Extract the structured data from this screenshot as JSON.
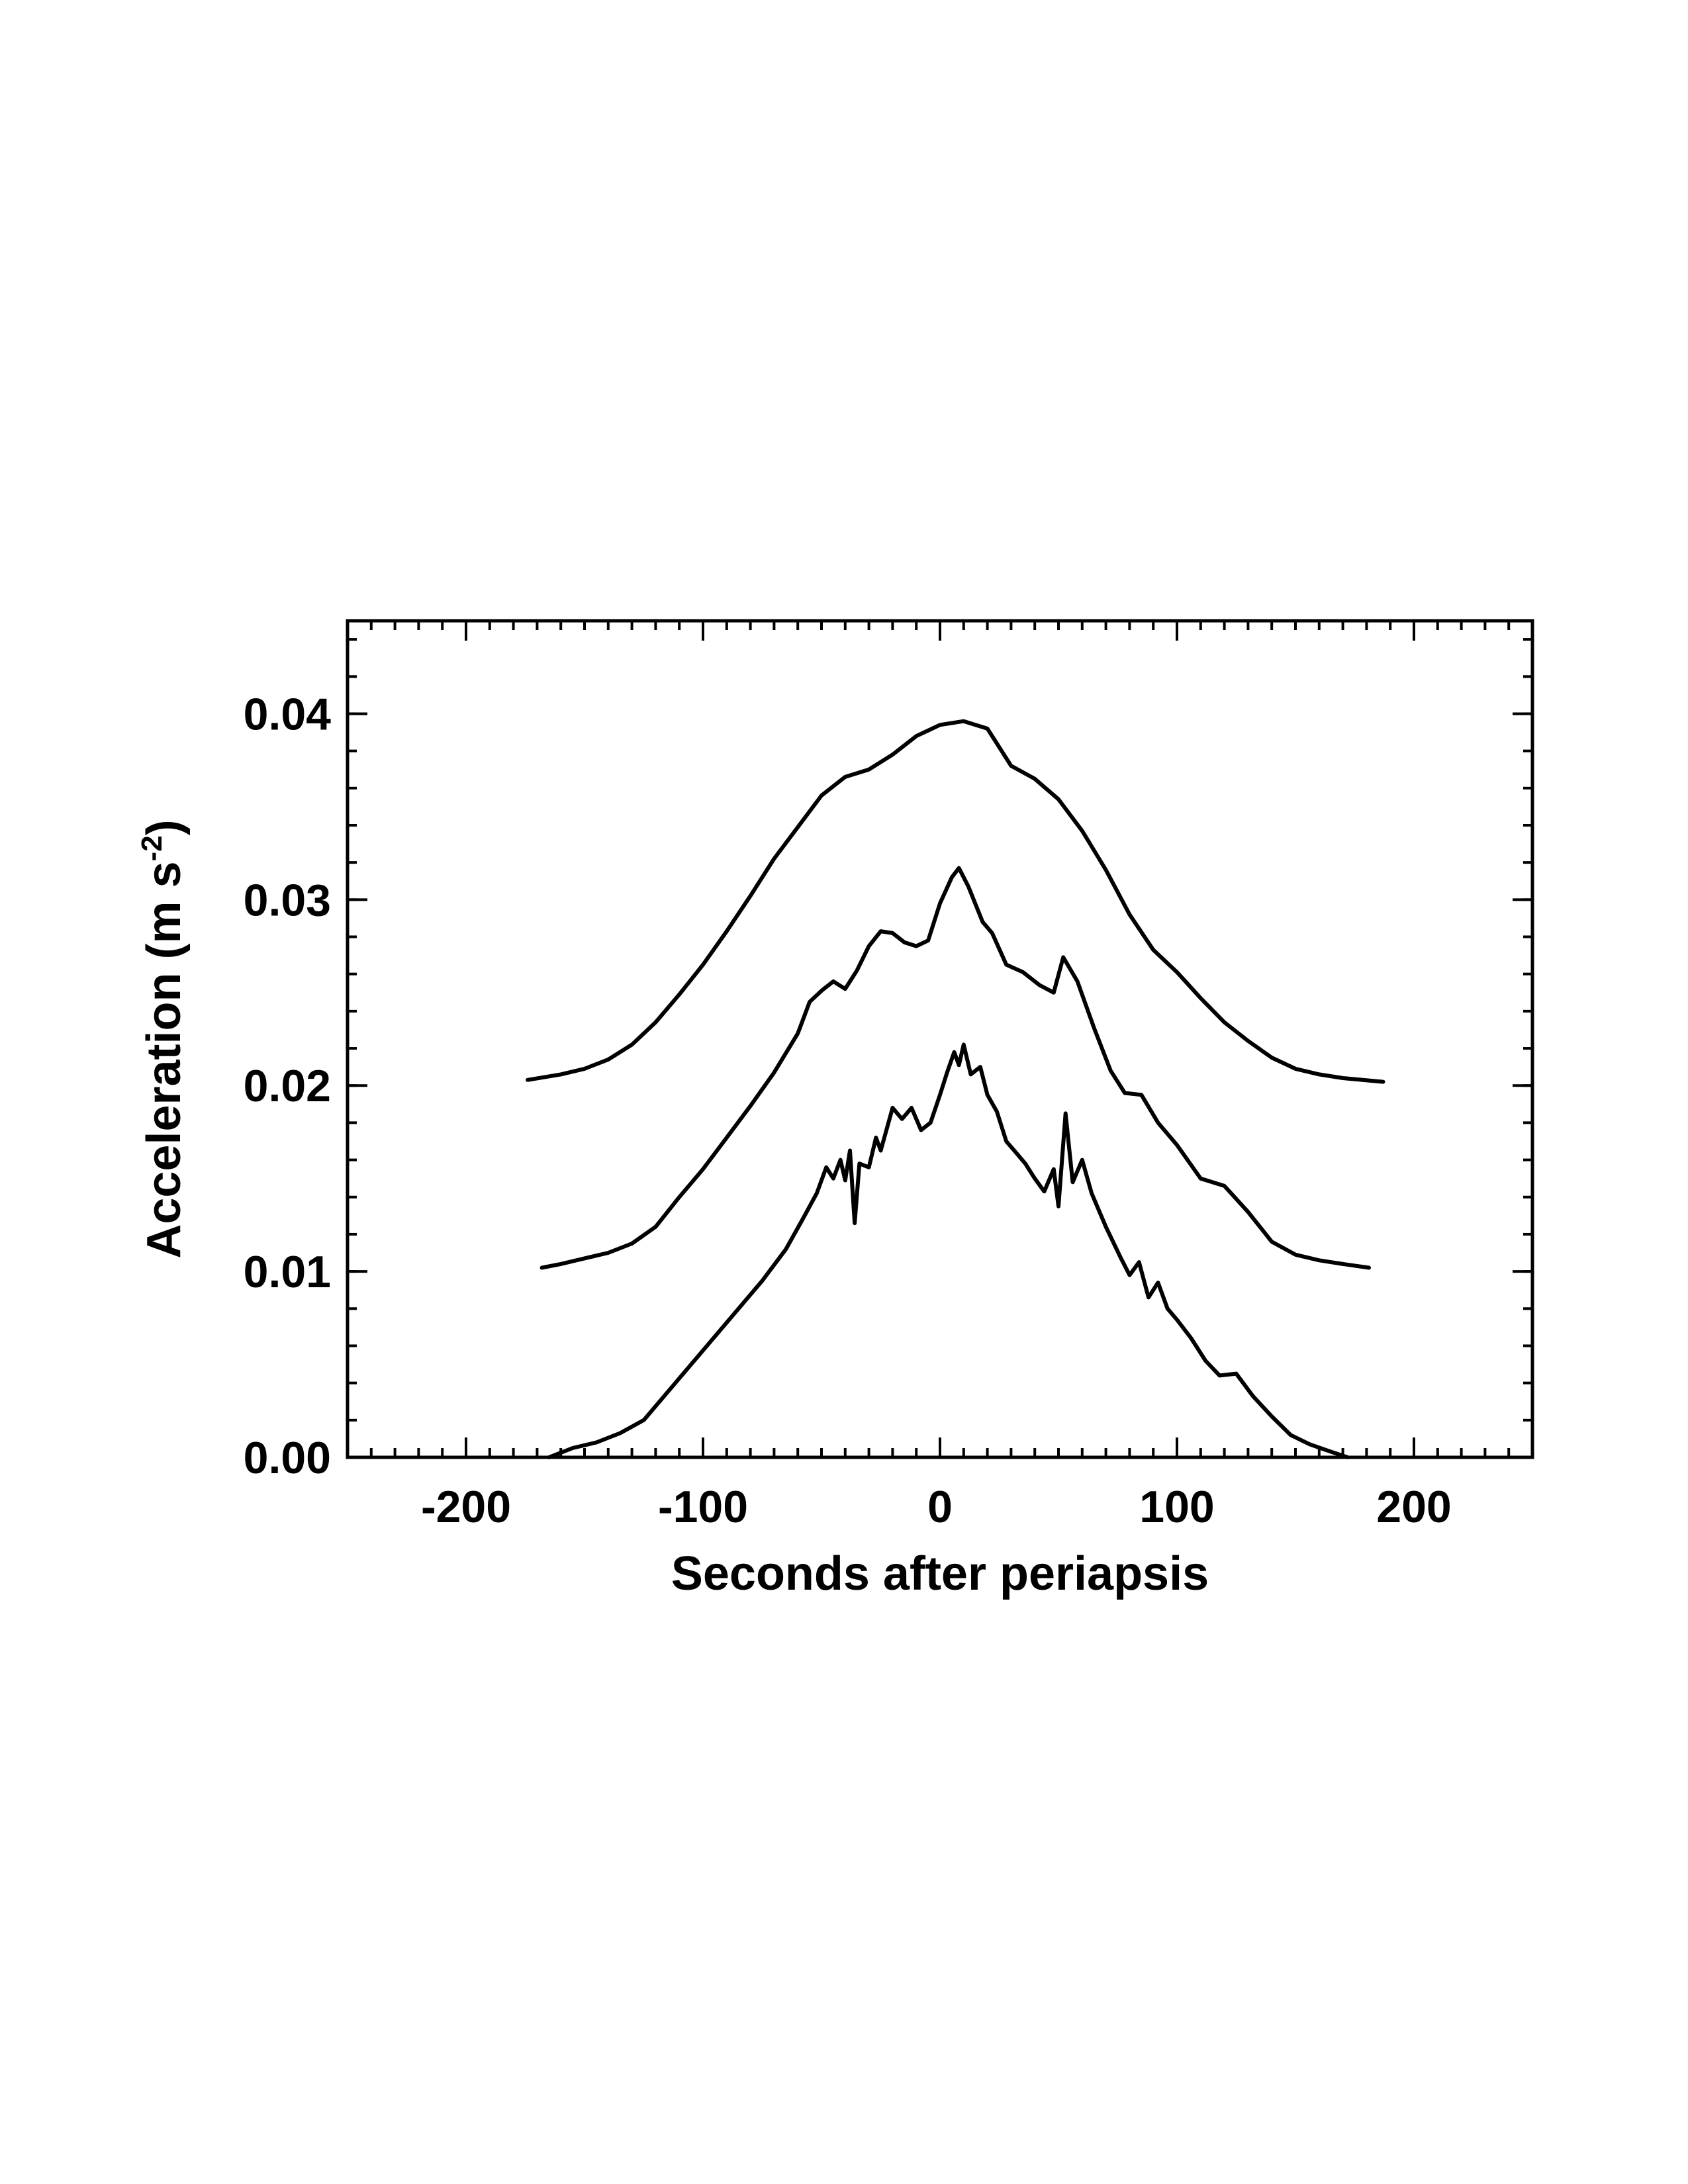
{
  "chart_data": {
    "type": "line",
    "xlabel": "Seconds after periapsis",
    "ylabel": {
      "text": "Acceleration (m s",
      "superscript": "-2",
      "suffix": ")"
    },
    "xlim": [
      -250,
      250
    ],
    "ylim": [
      0,
      0.045
    ],
    "grid": false,
    "x_ticks": {
      "major": [
        -200,
        -100,
        0,
        100,
        200
      ],
      "labels": [
        "-200",
        "-100",
        "0",
        "100",
        "200"
      ],
      "minor_step": 10
    },
    "y_ticks": {
      "major": [
        0.0,
        0.01,
        0.02,
        0.03,
        0.04
      ],
      "labels": [
        "0.00",
        "0.01",
        "0.02",
        "0.03",
        "0.04"
      ],
      "minor_step": 0.002
    },
    "series": [
      {
        "points": [
          [
            -174,
            0.0203
          ],
          [
            -160,
            0.0206
          ],
          [
            -150,
            0.0209
          ],
          [
            -140,
            0.0214
          ],
          [
            -130,
            0.0222
          ],
          [
            -120,
            0.0234
          ],
          [
            -110,
            0.0249
          ],
          [
            -100,
            0.0265
          ],
          [
            -90,
            0.0283
          ],
          [
            -80,
            0.0302
          ],
          [
            -70,
            0.0322
          ],
          [
            -60,
            0.0339
          ],
          [
            -50,
            0.0356
          ],
          [
            -40,
            0.0366
          ],
          [
            -30,
            0.037
          ],
          [
            -20,
            0.0378
          ],
          [
            -10,
            0.0388
          ],
          [
            0,
            0.0394
          ],
          [
            10,
            0.0396
          ],
          [
            20,
            0.0392
          ],
          [
            30,
            0.0372
          ],
          [
            40,
            0.0365
          ],
          [
            50,
            0.0354
          ],
          [
            60,
            0.0337
          ],
          [
            70,
            0.0316
          ],
          [
            80,
            0.0292
          ],
          [
            90,
            0.0273
          ],
          [
            100,
            0.0261
          ],
          [
            110,
            0.0247
          ],
          [
            120,
            0.0234
          ],
          [
            130,
            0.0224
          ],
          [
            140,
            0.0215
          ],
          [
            150,
            0.0209
          ],
          [
            160,
            0.0206
          ],
          [
            170,
            0.0204
          ],
          [
            187,
            0.0202
          ]
        ]
      },
      {
        "points": [
          [
            -168,
            0.0102
          ],
          [
            -160,
            0.0104
          ],
          [
            -150,
            0.0107
          ],
          [
            -140,
            0.011
          ],
          [
            -130,
            0.0115
          ],
          [
            -120,
            0.0124
          ],
          [
            -110,
            0.014
          ],
          [
            -100,
            0.0155
          ],
          [
            -90,
            0.0172
          ],
          [
            -80,
            0.0189
          ],
          [
            -70,
            0.0207
          ],
          [
            -60,
            0.0228
          ],
          [
            -55,
            0.0245
          ],
          [
            -50,
            0.0251
          ],
          [
            -45,
            0.0256
          ],
          [
            -40,
            0.0252
          ],
          [
            -35,
            0.0262
          ],
          [
            -30,
            0.0275
          ],
          [
            -25,
            0.0283
          ],
          [
            -20,
            0.0282
          ],
          [
            -15,
            0.0277
          ],
          [
            -10,
            0.0275
          ],
          [
            -5,
            0.0278
          ],
          [
            0,
            0.0298
          ],
          [
            5,
            0.0312
          ],
          [
            8,
            0.0317
          ],
          [
            12,
            0.0307
          ],
          [
            18,
            0.0288
          ],
          [
            22,
            0.0282
          ],
          [
            28,
            0.0265
          ],
          [
            35,
            0.0261
          ],
          [
            42,
            0.0254
          ],
          [
            48,
            0.025
          ],
          [
            52,
            0.0269
          ],
          [
            58,
            0.0256
          ],
          [
            65,
            0.0231
          ],
          [
            72,
            0.0208
          ],
          [
            78,
            0.0196
          ],
          [
            85,
            0.0195
          ],
          [
            92,
            0.018
          ],
          [
            100,
            0.0168
          ],
          [
            110,
            0.015
          ],
          [
            120,
            0.0146
          ],
          [
            130,
            0.0132
          ],
          [
            140,
            0.0116
          ],
          [
            150,
            0.0109
          ],
          [
            160,
            0.0106
          ],
          [
            170,
            0.0104
          ],
          [
            181,
            0.0102
          ]
        ]
      },
      {
        "points": [
          [
            -165,
            0.0
          ],
          [
            -155,
            0.0005
          ],
          [
            -145,
            0.0008
          ],
          [
            -135,
            0.0013
          ],
          [
            -125,
            0.002
          ],
          [
            -115,
            0.0035
          ],
          [
            -105,
            0.005
          ],
          [
            -95,
            0.0065
          ],
          [
            -85,
            0.008
          ],
          [
            -75,
            0.0095
          ],
          [
            -65,
            0.0112
          ],
          [
            -58,
            0.0128
          ],
          [
            -52,
            0.0142
          ],
          [
            -48,
            0.0156
          ],
          [
            -45,
            0.015
          ],
          [
            -42,
            0.016
          ],
          [
            -40,
            0.0149
          ],
          [
            -38,
            0.0165
          ],
          [
            -36,
            0.0126
          ],
          [
            -34,
            0.0158
          ],
          [
            -30,
            0.0156
          ],
          [
            -27,
            0.0172
          ],
          [
            -25,
            0.0165
          ],
          [
            -20,
            0.0188
          ],
          [
            -16,
            0.0182
          ],
          [
            -12,
            0.0188
          ],
          [
            -8,
            0.0176
          ],
          [
            -4,
            0.018
          ],
          [
            0,
            0.0195
          ],
          [
            3,
            0.0207
          ],
          [
            6,
            0.0218
          ],
          [
            8,
            0.0211
          ],
          [
            10,
            0.0222
          ],
          [
            13,
            0.0206
          ],
          [
            17,
            0.021
          ],
          [
            20,
            0.0195
          ],
          [
            24,
            0.0186
          ],
          [
            28,
            0.017
          ],
          [
            32,
            0.0164
          ],
          [
            36,
            0.0158
          ],
          [
            40,
            0.015
          ],
          [
            44,
            0.0143
          ],
          [
            48,
            0.0155
          ],
          [
            50,
            0.0135
          ],
          [
            53,
            0.0185
          ],
          [
            56,
            0.0148
          ],
          [
            60,
            0.016
          ],
          [
            64,
            0.0142
          ],
          [
            70,
            0.0124
          ],
          [
            76,
            0.0108
          ],
          [
            80,
            0.0098
          ],
          [
            84,
            0.0105
          ],
          [
            88,
            0.0086
          ],
          [
            92,
            0.0094
          ],
          [
            96,
            0.008
          ],
          [
            100,
            0.0074
          ],
          [
            106,
            0.0064
          ],
          [
            112,
            0.0052
          ],
          [
            118,
            0.0044
          ],
          [
            125,
            0.0045
          ],
          [
            132,
            0.0033
          ],
          [
            140,
            0.0022
          ],
          [
            148,
            0.0012
          ],
          [
            156,
            0.0007
          ],
          [
            165,
            0.0003
          ],
          [
            172,
            0.0
          ]
        ]
      }
    ]
  }
}
